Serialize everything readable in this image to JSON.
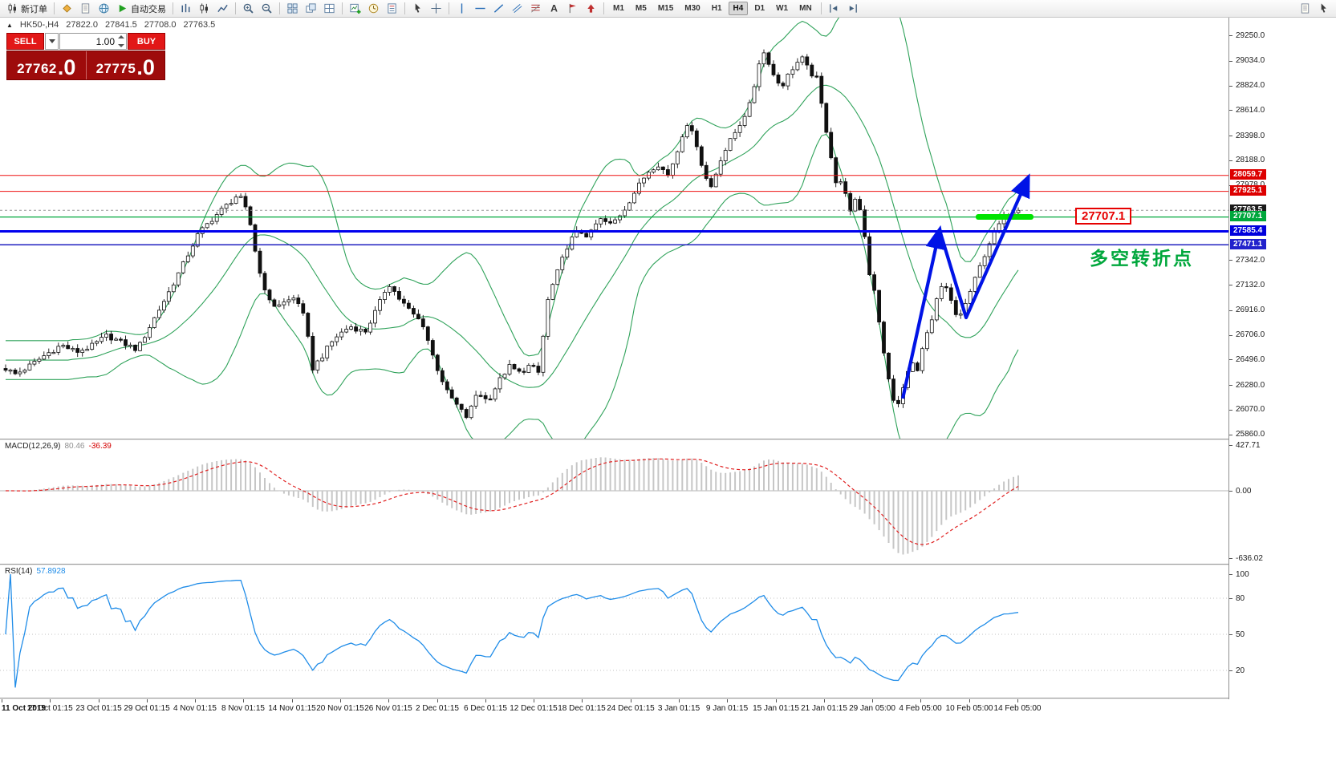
{
  "window": {
    "toolbar": {
      "timeframes": [
        "M1",
        "M5",
        "M15",
        "M30",
        "H1",
        "H4",
        "D1",
        "W1",
        "MN"
      ],
      "active_timeframe": "H4",
      "groups": [
        {
          "items": [
            {
              "name": "new-order-button",
              "icon": "candlestick",
              "label": "新订单"
            }
          ]
        },
        {
          "items": [
            {
              "name": "market-watch-button",
              "icon": "diamond"
            },
            {
              "name": "data-window-button",
              "icon": "document"
            },
            {
              "name": "navigator-button",
              "icon": "globe"
            },
            {
              "name": "auto-trading-button",
              "icon": "play",
              "label": "自动交易"
            }
          ]
        },
        {
          "items": [
            {
              "name": "bar-chart-mode-button",
              "icon": "barchart"
            },
            {
              "name": "candlestick-mode-button",
              "icon": "candlestick"
            },
            {
              "name": "line-chart-mode-button",
              "icon": "linechart"
            }
          ]
        },
        {
          "items": [
            {
              "name": "zoom-in-button",
              "icon": "zoomin"
            },
            {
              "name": "zoom-out-button",
              "icon": "zoomout"
            }
          ]
        },
        {
          "items": [
            {
              "name": "tile-windows-button",
              "icon": "grid"
            },
            {
              "name": "cascade-windows-button",
              "icon": "cascade"
            },
            {
              "name": "arrange-windows-button",
              "icon": "grid2"
            }
          ]
        },
        {
          "items": [
            {
              "name": "new-chart-button",
              "icon": "newchart"
            },
            {
              "name": "profiles-button",
              "icon": "clockchart"
            },
            {
              "name": "templates-button",
              "icon": "template"
            }
          ]
        },
        {
          "items": [
            {
              "name": "cursor-tool-button",
              "icon": "cursor"
            },
            {
              "name": "crosshair-tool-button",
              "icon": "crosshair"
            }
          ]
        },
        {
          "items": [
            {
              "name": "vertical-line-tool-button",
              "icon": "vline"
            },
            {
              "name": "horizontal-line-tool-button",
              "icon": "hline"
            },
            {
              "name": "trendline-tool-button",
              "icon": "trend"
            },
            {
              "name": "channel-tool-button",
              "icon": "channel"
            },
            {
              "name": "fibonacci-tool-button",
              "icon": "fibo"
            },
            {
              "name": "text-tool-button",
              "icon": "text"
            },
            {
              "name": "label-tool-button",
              "icon": "label"
            },
            {
              "name": "arrows-tool-button",
              "icon": "arrowdrop"
            }
          ]
        },
        {
          "type": "timeframes"
        },
        {
          "items": [
            {
              "name": "chart-shift-button",
              "icon": "shift"
            },
            {
              "name": "auto-scroll-button",
              "icon": "autoscroll"
            }
          ]
        }
      ],
      "right_items": [
        {
          "name": "toolbar-extra-button-1",
          "icon": "document"
        },
        {
          "name": "toolbar-extra-button-2",
          "icon": "cursor"
        }
      ]
    }
  },
  "chart": {
    "header": {
      "collapse_icon": "▲",
      "symbol": "HK50-,H4",
      "open": "27822.0",
      "high": "27841.5",
      "low": "27708.0",
      "close": "27763.5"
    },
    "one_click": {
      "sell_label": "SELL",
      "buy_label": "BUY",
      "volume": "1.00",
      "sell_price": "27762",
      "sell_price_frac": ".0",
      "buy_price": "27775",
      "buy_price_frac": ".0"
    },
    "current_price": 27763.5,
    "levels": [
      {
        "price": 28059.7,
        "color": "#ee1111",
        "width": 1
      },
      {
        "price": 27925.1,
        "color": "#ee1111",
        "width": 1
      },
      {
        "price": 27707.1,
        "color": "#00a73c",
        "width": 1.2
      },
      {
        "price": 27585.4,
        "color": "#0000ee",
        "width": 3
      },
      {
        "price": 27471.1,
        "color": "#2020c0",
        "width": 1.5
      }
    ],
    "highlight_color": "#00e400",
    "arrow_color": "#0013e6",
    "annotation": {
      "text": "多空转折点",
      "color": "#00a73c"
    },
    "price_callout": {
      "text": "27707.1",
      "color": "#e60000"
    }
  },
  "macd": {
    "title": "MACD(12,26,9)",
    "value": "80.46",
    "signal_value": "-36.39"
  },
  "rsi": {
    "title": "RSI(14)",
    "value": "57.8928"
  },
  "axes": {
    "price_plain": [
      29250.0,
      29034.0,
      28824.0,
      28614.0,
      28398.0,
      28188.0,
      27978.0,
      27342.0,
      27132.0,
      26916.0,
      26706.0,
      26496.0,
      26280.0,
      26070.0,
      25860.0
    ],
    "price_boxed": [
      {
        "text": "28059.7",
        "price": 28059.7,
        "bg": "#dd0000"
      },
      {
        "text": "27925.1",
        "price": 27925.1,
        "bg": "#dd0000"
      },
      {
        "text": "27763.5",
        "price": 27763.5,
        "bg": "#1a1a1a"
      },
      {
        "text": "27707.1",
        "price": 27707.1,
        "bg": "#00a73c"
      },
      {
        "text": "27585.4",
        "price": 27585.4,
        "bg": "#0000dd"
      },
      {
        "text": "27471.1",
        "price": 27471.1,
        "bg": "#2222cc"
      }
    ],
    "macd": [
      {
        "text": "427.71",
        "value": 427.71
      },
      {
        "text": "0.00",
        "value": 0
      },
      {
        "text": "-636.02",
        "value": -636.02
      }
    ],
    "rsi": [
      {
        "text": "100",
        "value": 100
      },
      {
        "text": "80",
        "value": 80
      },
      {
        "text": "50",
        "value": 50
      },
      {
        "text": "20",
        "value": 20
      }
    ],
    "rsi_levels": [
      80,
      50,
      20
    ],
    "time": [
      "11 Oct 2019",
      "17 Oct 01:15",
      "23 Oct 01:15",
      "29 Oct 01:15",
      "4 Nov 01:15",
      "8 Nov 01:15",
      "14 Nov 01:15",
      "20 Nov 01:15",
      "26 Nov 01:15",
      "2 Dec 01:15",
      "6 Dec 01:15",
      "12 Dec 01:15",
      "18 Dec 01:15",
      "24 Dec 01:15",
      "3 Jan 01:15",
      "9 Jan 01:15",
      "15 Jan 01:15",
      "21 Jan 01:15",
      "29 Jan 05:00",
      "4 Feb 05:00",
      "10 Feb 05:00",
      "14 Feb 05:00"
    ]
  },
  "chart_data": {
    "type": "candlestick",
    "symbol": "HK50-",
    "timeframe": "H4",
    "ohlc_header": {
      "open": 27822.0,
      "high": 27841.5,
      "low": 27708.0,
      "close": 27763.5
    },
    "visible_price_range": [
      25860.0,
      29400.0
    ],
    "candle_count_estimate": 212,
    "indicators": {
      "bollinger": {
        "period": 20,
        "deviation": 2,
        "color": "#2fa25a"
      },
      "macd": {
        "fast": 12,
        "slow": 26,
        "signal": 9,
        "value": 80.46,
        "signal_value": -36.39,
        "axis_range": [
          427.71,
          -636.02
        ]
      },
      "rsi": {
        "period": 14,
        "value": 57.8928,
        "range": [
          0,
          100
        ]
      }
    },
    "horizontal_levels": [
      28059.7,
      27925.1,
      27707.1,
      27585.4,
      27471.1
    ],
    "trend_annotation": "blue W-shaped arrow from the early-February low up to the 28060 resistance",
    "price_path_keypoints": [
      [
        0.0,
        26420
      ],
      [
        0.01,
        26370
      ],
      [
        0.025,
        26450
      ],
      [
        0.04,
        26540
      ],
      [
        0.055,
        26620
      ],
      [
        0.07,
        26560
      ],
      [
        0.085,
        26610
      ],
      [
        0.1,
        26700
      ],
      [
        0.115,
        26640
      ],
      [
        0.13,
        26580
      ],
      [
        0.145,
        26820
      ],
      [
        0.16,
        27050
      ],
      [
        0.175,
        27300
      ],
      [
        0.19,
        27560
      ],
      [
        0.205,
        27700
      ],
      [
        0.22,
        27820
      ],
      [
        0.23,
        27900
      ],
      [
        0.24,
        27720
      ],
      [
        0.25,
        27260
      ],
      [
        0.262,
        26950
      ],
      [
        0.275,
        26980
      ],
      [
        0.287,
        27030
      ],
      [
        0.296,
        26820
      ],
      [
        0.303,
        26420
      ],
      [
        0.312,
        26520
      ],
      [
        0.325,
        26680
      ],
      [
        0.34,
        26780
      ],
      [
        0.355,
        26730
      ],
      [
        0.368,
        26950
      ],
      [
        0.378,
        27150
      ],
      [
        0.388,
        27020
      ],
      [
        0.4,
        26900
      ],
      [
        0.412,
        26800
      ],
      [
        0.424,
        26470
      ],
      [
        0.436,
        26220
      ],
      [
        0.448,
        26080
      ],
      [
        0.456,
        26000
      ],
      [
        0.466,
        26230
      ],
      [
        0.476,
        26140
      ],
      [
        0.487,
        26310
      ],
      [
        0.497,
        26440
      ],
      [
        0.508,
        26380
      ],
      [
        0.518,
        26450
      ],
      [
        0.526,
        26380
      ],
      [
        0.536,
        27030
      ],
      [
        0.546,
        27260
      ],
      [
        0.556,
        27490
      ],
      [
        0.566,
        27590
      ],
      [
        0.576,
        27540
      ],
      [
        0.586,
        27690
      ],
      [
        0.598,
        27640
      ],
      [
        0.61,
        27760
      ],
      [
        0.622,
        27930
      ],
      [
        0.634,
        28090
      ],
      [
        0.644,
        28160
      ],
      [
        0.654,
        28060
      ],
      [
        0.664,
        28280
      ],
      [
        0.672,
        28520
      ],
      [
        0.682,
        28340
      ],
      [
        0.69,
        28060
      ],
      [
        0.697,
        27960
      ],
      [
        0.706,
        28200
      ],
      [
        0.716,
        28360
      ],
      [
        0.726,
        28510
      ],
      [
        0.736,
        28680
      ],
      [
        0.744,
        29020
      ],
      [
        0.75,
        29120
      ],
      [
        0.757,
        28930
      ],
      [
        0.766,
        28810
      ],
      [
        0.776,
        28960
      ],
      [
        0.786,
        29060
      ],
      [
        0.794,
        28940
      ],
      [
        0.801,
        28880
      ],
      [
        0.807,
        28600
      ],
      [
        0.814,
        28280
      ],
      [
        0.821,
        27950
      ],
      [
        0.827,
        28020
      ],
      [
        0.834,
        27740
      ],
      [
        0.84,
        27860
      ],
      [
        0.846,
        27720
      ],
      [
        0.852,
        27260
      ],
      [
        0.859,
        27060
      ],
      [
        0.866,
        26600
      ],
      [
        0.873,
        26280
      ],
      [
        0.88,
        26060
      ],
      [
        0.887,
        26280
      ],
      [
        0.894,
        26470
      ],
      [
        0.901,
        26420
      ],
      [
        0.908,
        26680
      ],
      [
        0.915,
        26820
      ],
      [
        0.921,
        27060
      ],
      [
        0.927,
        27140
      ],
      [
        0.933,
        27000
      ],
      [
        0.939,
        26860
      ],
      [
        0.945,
        26900
      ],
      [
        0.951,
        27040
      ],
      [
        0.958,
        27190
      ],
      [
        0.965,
        27350
      ],
      [
        0.972,
        27500
      ],
      [
        0.979,
        27620
      ],
      [
        0.986,
        27700
      ],
      [
        0.993,
        27760
      ],
      [
        1.0,
        27763.5
      ]
    ]
  }
}
